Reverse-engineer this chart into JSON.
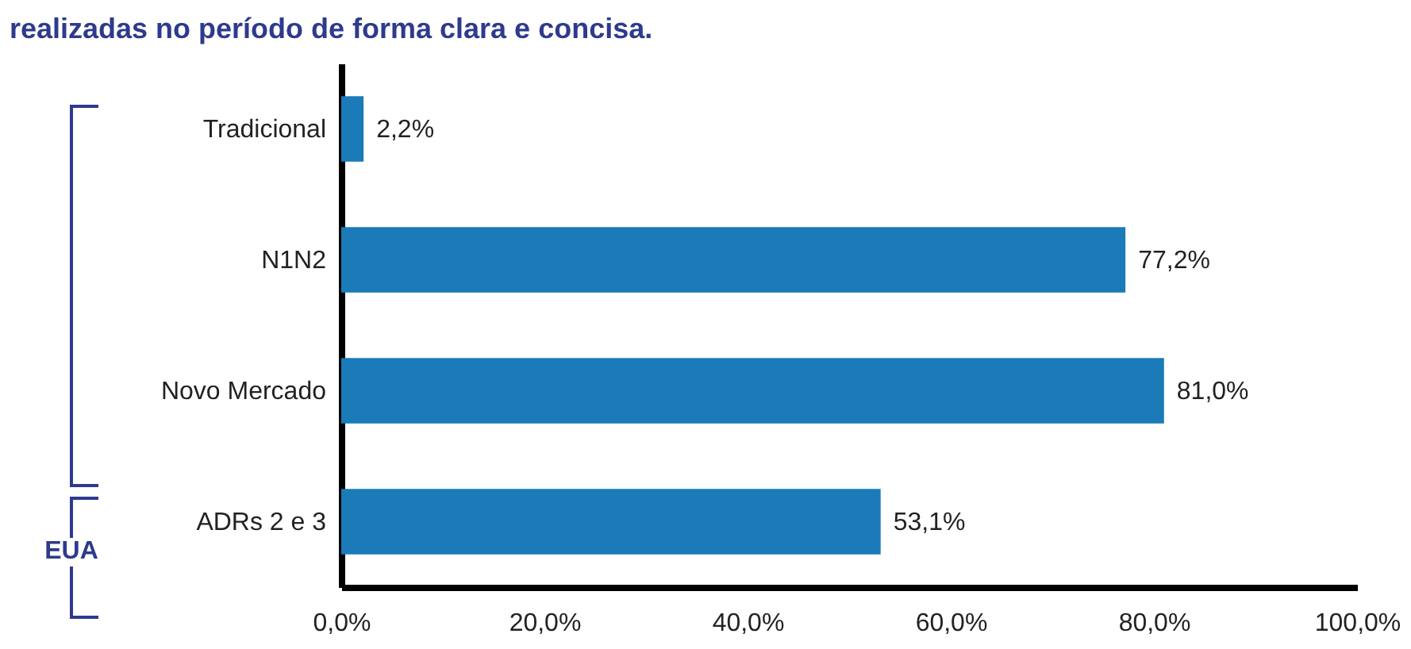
{
  "chart_data": {
    "type": "bar",
    "orientation": "horizontal",
    "title": "realizadas no período de forma clara e concisa.",
    "categories": [
      "Tradicional",
      "N1N2",
      "Novo Mercado",
      "ADRs 2 e 3"
    ],
    "values": [
      2.2,
      77.2,
      81.0,
      53.1
    ],
    "value_labels": [
      "2,2%",
      "77,2%",
      "81,0%",
      "53,1%"
    ],
    "color": "#1a7bb8",
    "xlim": [
      0,
      100
    ],
    "xticks": [
      {
        "value": 0,
        "label": "0,0%"
      },
      {
        "value": 20,
        "label": "20,0%"
      },
      {
        "value": 40,
        "label": "40,0%"
      },
      {
        "value": 60,
        "label": "60,0%"
      },
      {
        "value": 80,
        "label": "80,0%"
      },
      {
        "value": 100,
        "label": "100,0%"
      }
    ],
    "annotations": [
      "EUA"
    ]
  }
}
